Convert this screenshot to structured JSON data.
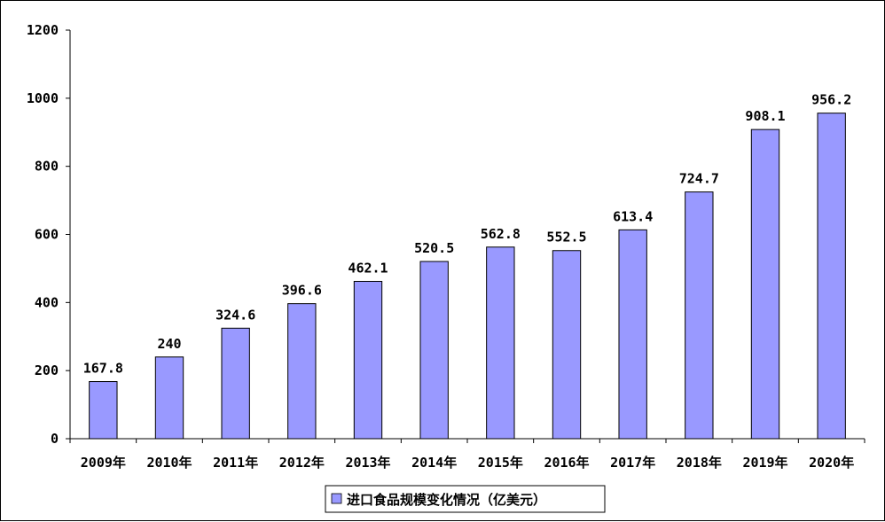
{
  "chart_data": {
    "type": "bar",
    "categories": [
      "2009年",
      "2010年",
      "2011年",
      "2012年",
      "2013年",
      "2014年",
      "2015年",
      "2016年",
      "2017年",
      "2018年",
      "2019年",
      "2020年"
    ],
    "series": [
      {
        "name": "进口食品规模变化情况（亿美元）",
        "values": [
          167.8,
          240,
          324.6,
          396.6,
          462.1,
          520.5,
          562.8,
          552.5,
          613.4,
          724.7,
          908.1,
          956.2
        ],
        "value_labels": [
          "167.8",
          "240",
          "324.6",
          "396.6",
          "462.1",
          "520.5",
          "562.8",
          "552.5",
          "613.4",
          "724.7",
          "908.1",
          "956.2"
        ]
      }
    ],
    "yticks": [
      "0",
      "200",
      "400",
      "600",
      "800",
      "1000",
      "1200"
    ],
    "ylim": [
      0,
      1200
    ],
    "grid": false,
    "legend_position": "bottom-center",
    "bar_color": "#9999ff",
    "bar_border_color": "#000000"
  }
}
